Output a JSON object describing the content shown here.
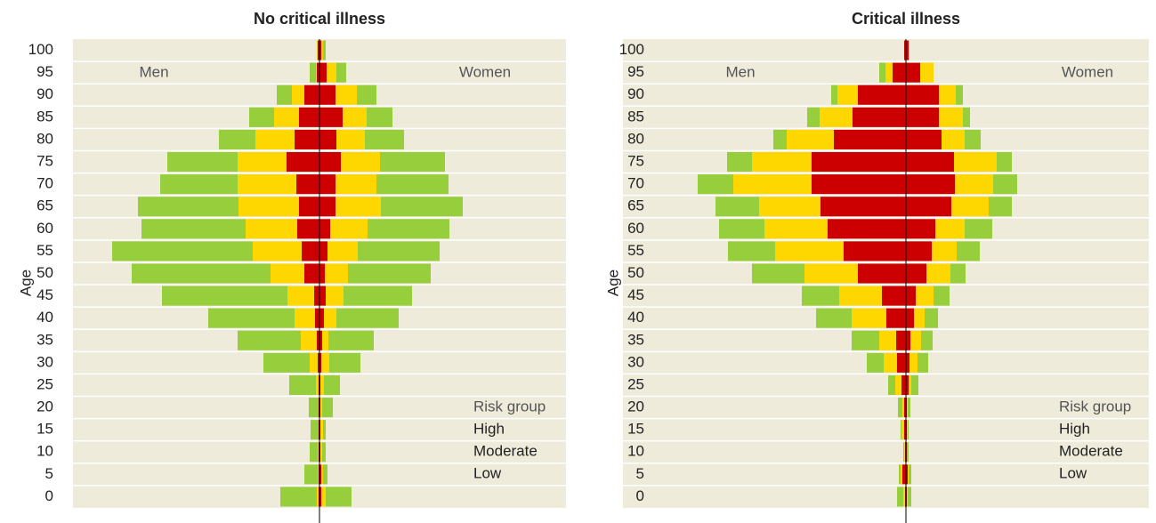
{
  "chart_data": [
    {
      "type": "pyramid",
      "title": "No critical illness",
      "y_label": "Age",
      "left_label": "Men",
      "right_label": "Women",
      "legend_title": "Risk group",
      "categories": [
        "0",
        "5",
        "10",
        "15",
        "20",
        "25",
        "30",
        "35",
        "40",
        "45",
        "50",
        "55",
        "60",
        "65",
        "70",
        "75",
        "80",
        "85",
        "90",
        "95",
        "100"
      ],
      "series": [
        {
          "name": "High",
          "color": "#cc0000",
          "men": [
            1,
            1,
            1,
            1,
            1,
            1,
            2,
            3,
            5,
            6,
            17,
            20,
            25,
            23,
            26,
            37,
            28,
            23,
            17,
            3,
            2
          ],
          "women": [
            2,
            2,
            1,
            1,
            1,
            1,
            2,
            3,
            5,
            7,
            6,
            9,
            12,
            18,
            18,
            24,
            19,
            26,
            18,
            8,
            2
          ]
        },
        {
          "name": "Moderate",
          "color": "#ffd700",
          "men": [
            2,
            1,
            1,
            0,
            0,
            3,
            9,
            18,
            23,
            30,
            38,
            55,
            58,
            68,
            66,
            55,
            44,
            28,
            14,
            1,
            1
          ],
          "women": [
            5,
            2,
            2,
            3,
            2,
            4,
            9,
            7,
            14,
            20,
            26,
            34,
            42,
            51,
            46,
            44,
            32,
            27,
            24,
            11,
            2
          ]
        },
        {
          "name": "Low",
          "color": "#97cf3c",
          "men": [
            41,
            15,
            9,
            9,
            11,
            30,
            52,
            71,
            97,
            141,
            156,
            158,
            117,
            113,
            87,
            79,
            41,
            28,
            17,
            7,
            0
          ],
          "women": [
            29,
            5,
            4,
            3,
            12,
            18,
            35,
            51,
            70,
            77,
            93,
            92,
            92,
            92,
            81,
            73,
            44,
            29,
            22,
            11,
            3
          ]
        }
      ]
    },
    {
      "type": "pyramid",
      "title": "Critical illness",
      "y_label": "Age",
      "left_label": "Men",
      "right_label": "Women",
      "legend_title": "Risk group",
      "categories": [
        "0",
        "5",
        "10",
        "15",
        "20",
        "25",
        "30",
        "35",
        "40",
        "45",
        "50",
        "55",
        "60",
        "65",
        "70",
        "75",
        "80",
        "85",
        "90",
        "95",
        "100"
      ],
      "series": [
        {
          "name": "High",
          "color": "#cc0000",
          "men": [
            1,
            4,
            1,
            2,
            2,
            5,
            10,
            11,
            22,
            27,
            54,
            70,
            88,
            96,
            106,
            106,
            81,
            60,
            54,
            15,
            2
          ],
          "women": [
            1,
            2,
            1,
            1,
            1,
            3,
            4,
            5,
            9,
            11,
            23,
            29,
            33,
            51,
            55,
            54,
            40,
            37,
            37,
            16,
            3
          ]
        },
        {
          "name": "Moderate",
          "color": "#ffd700",
          "men": [
            2,
            2,
            1,
            3,
            2,
            7,
            15,
            19,
            39,
            48,
            60,
            77,
            71,
            69,
            88,
            67,
            53,
            37,
            23,
            8,
            0
          ],
          "women": [
            1,
            1,
            0,
            1,
            1,
            3,
            9,
            12,
            12,
            20,
            27,
            28,
            33,
            42,
            43,
            48,
            26,
            27,
            19,
            15,
            1
          ]
        },
        {
          "name": "Low",
          "color": "#97cf3c",
          "men": [
            7,
            2,
            1,
            1,
            5,
            8,
            19,
            31,
            40,
            42,
            59,
            53,
            51,
            49,
            40,
            28,
            15,
            14,
            7,
            7,
            0
          ],
          "women": [
            4,
            3,
            2,
            1,
            3,
            8,
            12,
            13,
            15,
            18,
            17,
            26,
            31,
            26,
            27,
            17,
            18,
            8,
            8,
            0,
            0
          ]
        }
      ]
    }
  ]
}
